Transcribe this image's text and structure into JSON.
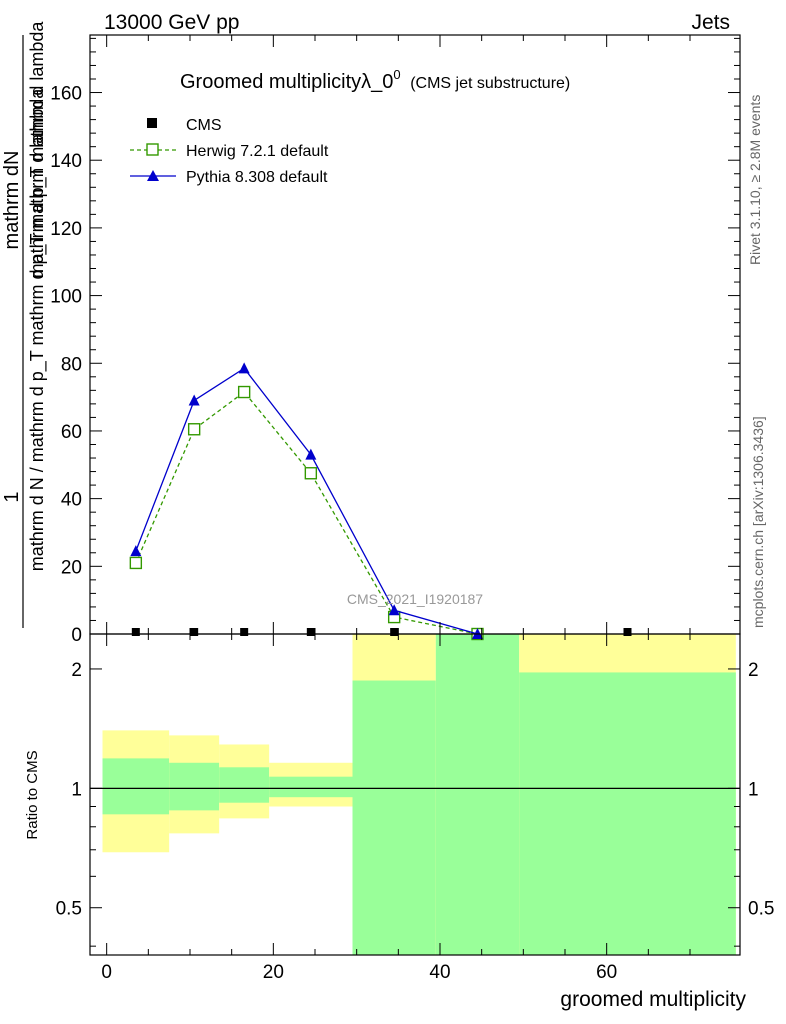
{
  "header": {
    "left": "13000 GeV pp",
    "right": "Jets"
  },
  "side_labels": {
    "rivet": "Rivet 3.1.10, ≥ 2.8M events",
    "mcplots": "mcplots.cern.ch [arXiv:1306.3436]"
  },
  "chart_data": {
    "type": "line",
    "title": "Groomed multiplicityλ_0",
    "title_sup": "0",
    "title_suffix": "(CMS jet substructure)",
    "watermark": "CMS_2021_I1920187",
    "ylabel_numerator": "1",
    "ylabel_denominator_upper": "mathrm dN",
    "ylabel_denominator_lower": "mathrm d p_T mathrm d lambda",
    "ylabel_denominator_full": "mathrm d N / mathrm d p_T mathrm d p_T mathrm d lambda",
    "ratio_ylabel": "Ratio to CMS",
    "xlabel": "groomed multiplicity",
    "xlim": [
      -2,
      76
    ],
    "ylim": [
      0,
      177
    ],
    "ratio_ylim": [
      0.38,
      2.45
    ],
    "x_ticks": [
      "0",
      "20",
      "40",
      "60"
    ],
    "y_ticks": [
      "0",
      "20",
      "40",
      "60",
      "80",
      "100",
      "120",
      "140",
      "160"
    ],
    "ratio_ticks": [
      "0.5",
      "1",
      "2"
    ],
    "legend": {
      "position": "top-left"
    },
    "series": [
      {
        "name": "CMS",
        "color": "#000000",
        "marker": "square-filled",
        "x": [
          3.5,
          10.5,
          16.5,
          24.5,
          34.5,
          44.5,
          62.5
        ],
        "y": [
          0,
          0,
          0,
          0,
          0,
          0,
          0
        ]
      },
      {
        "name": "Herwig 7.2.1 default",
        "color": "#339900",
        "marker": "square-open",
        "dash": true,
        "x": [
          3.5,
          10.5,
          16.5,
          24.5,
          34.5,
          44.5
        ],
        "y": [
          21,
          60.5,
          71.5,
          47.5,
          5,
          0
        ]
      },
      {
        "name": "Pythia 8.308 default",
        "color": "#0000cc",
        "marker": "triangle",
        "x": [
          3.5,
          10.5,
          16.5,
          24.5,
          34.5,
          44.5
        ],
        "y": [
          24.5,
          69,
          78.5,
          53,
          7,
          0
        ]
      }
    ],
    "ratio_bands": [
      {
        "xlo": -0.5,
        "xhi": 7.5,
        "yellow": [
          0.69,
          1.4
        ],
        "green": [
          0.86,
          1.19
        ]
      },
      {
        "xlo": 7.5,
        "xhi": 13.5,
        "yellow": [
          0.77,
          1.36
        ],
        "green": [
          0.88,
          1.16
        ]
      },
      {
        "xlo": 13.5,
        "xhi": 19.5,
        "yellow": [
          0.84,
          1.29
        ],
        "green": [
          0.92,
          1.13
        ]
      },
      {
        "xlo": 19.5,
        "xhi": 29.5,
        "yellow": [
          0.9,
          1.16
        ],
        "green": [
          0.95,
          1.07
        ]
      },
      {
        "xlo": 29.5,
        "xhi": 39.5,
        "yellow": [
          0.38,
          2.45
        ],
        "green": [
          0.38,
          1.87
        ]
      },
      {
        "xlo": 39.5,
        "xhi": 49.5,
        "yellow": [
          0.38,
          2.45
        ],
        "green": [
          0.38,
          2.45
        ]
      },
      {
        "xlo": 49.5,
        "xhi": 75.5,
        "yellow": [
          0.38,
          2.45
        ],
        "green": [
          0.38,
          1.96
        ]
      }
    ]
  }
}
